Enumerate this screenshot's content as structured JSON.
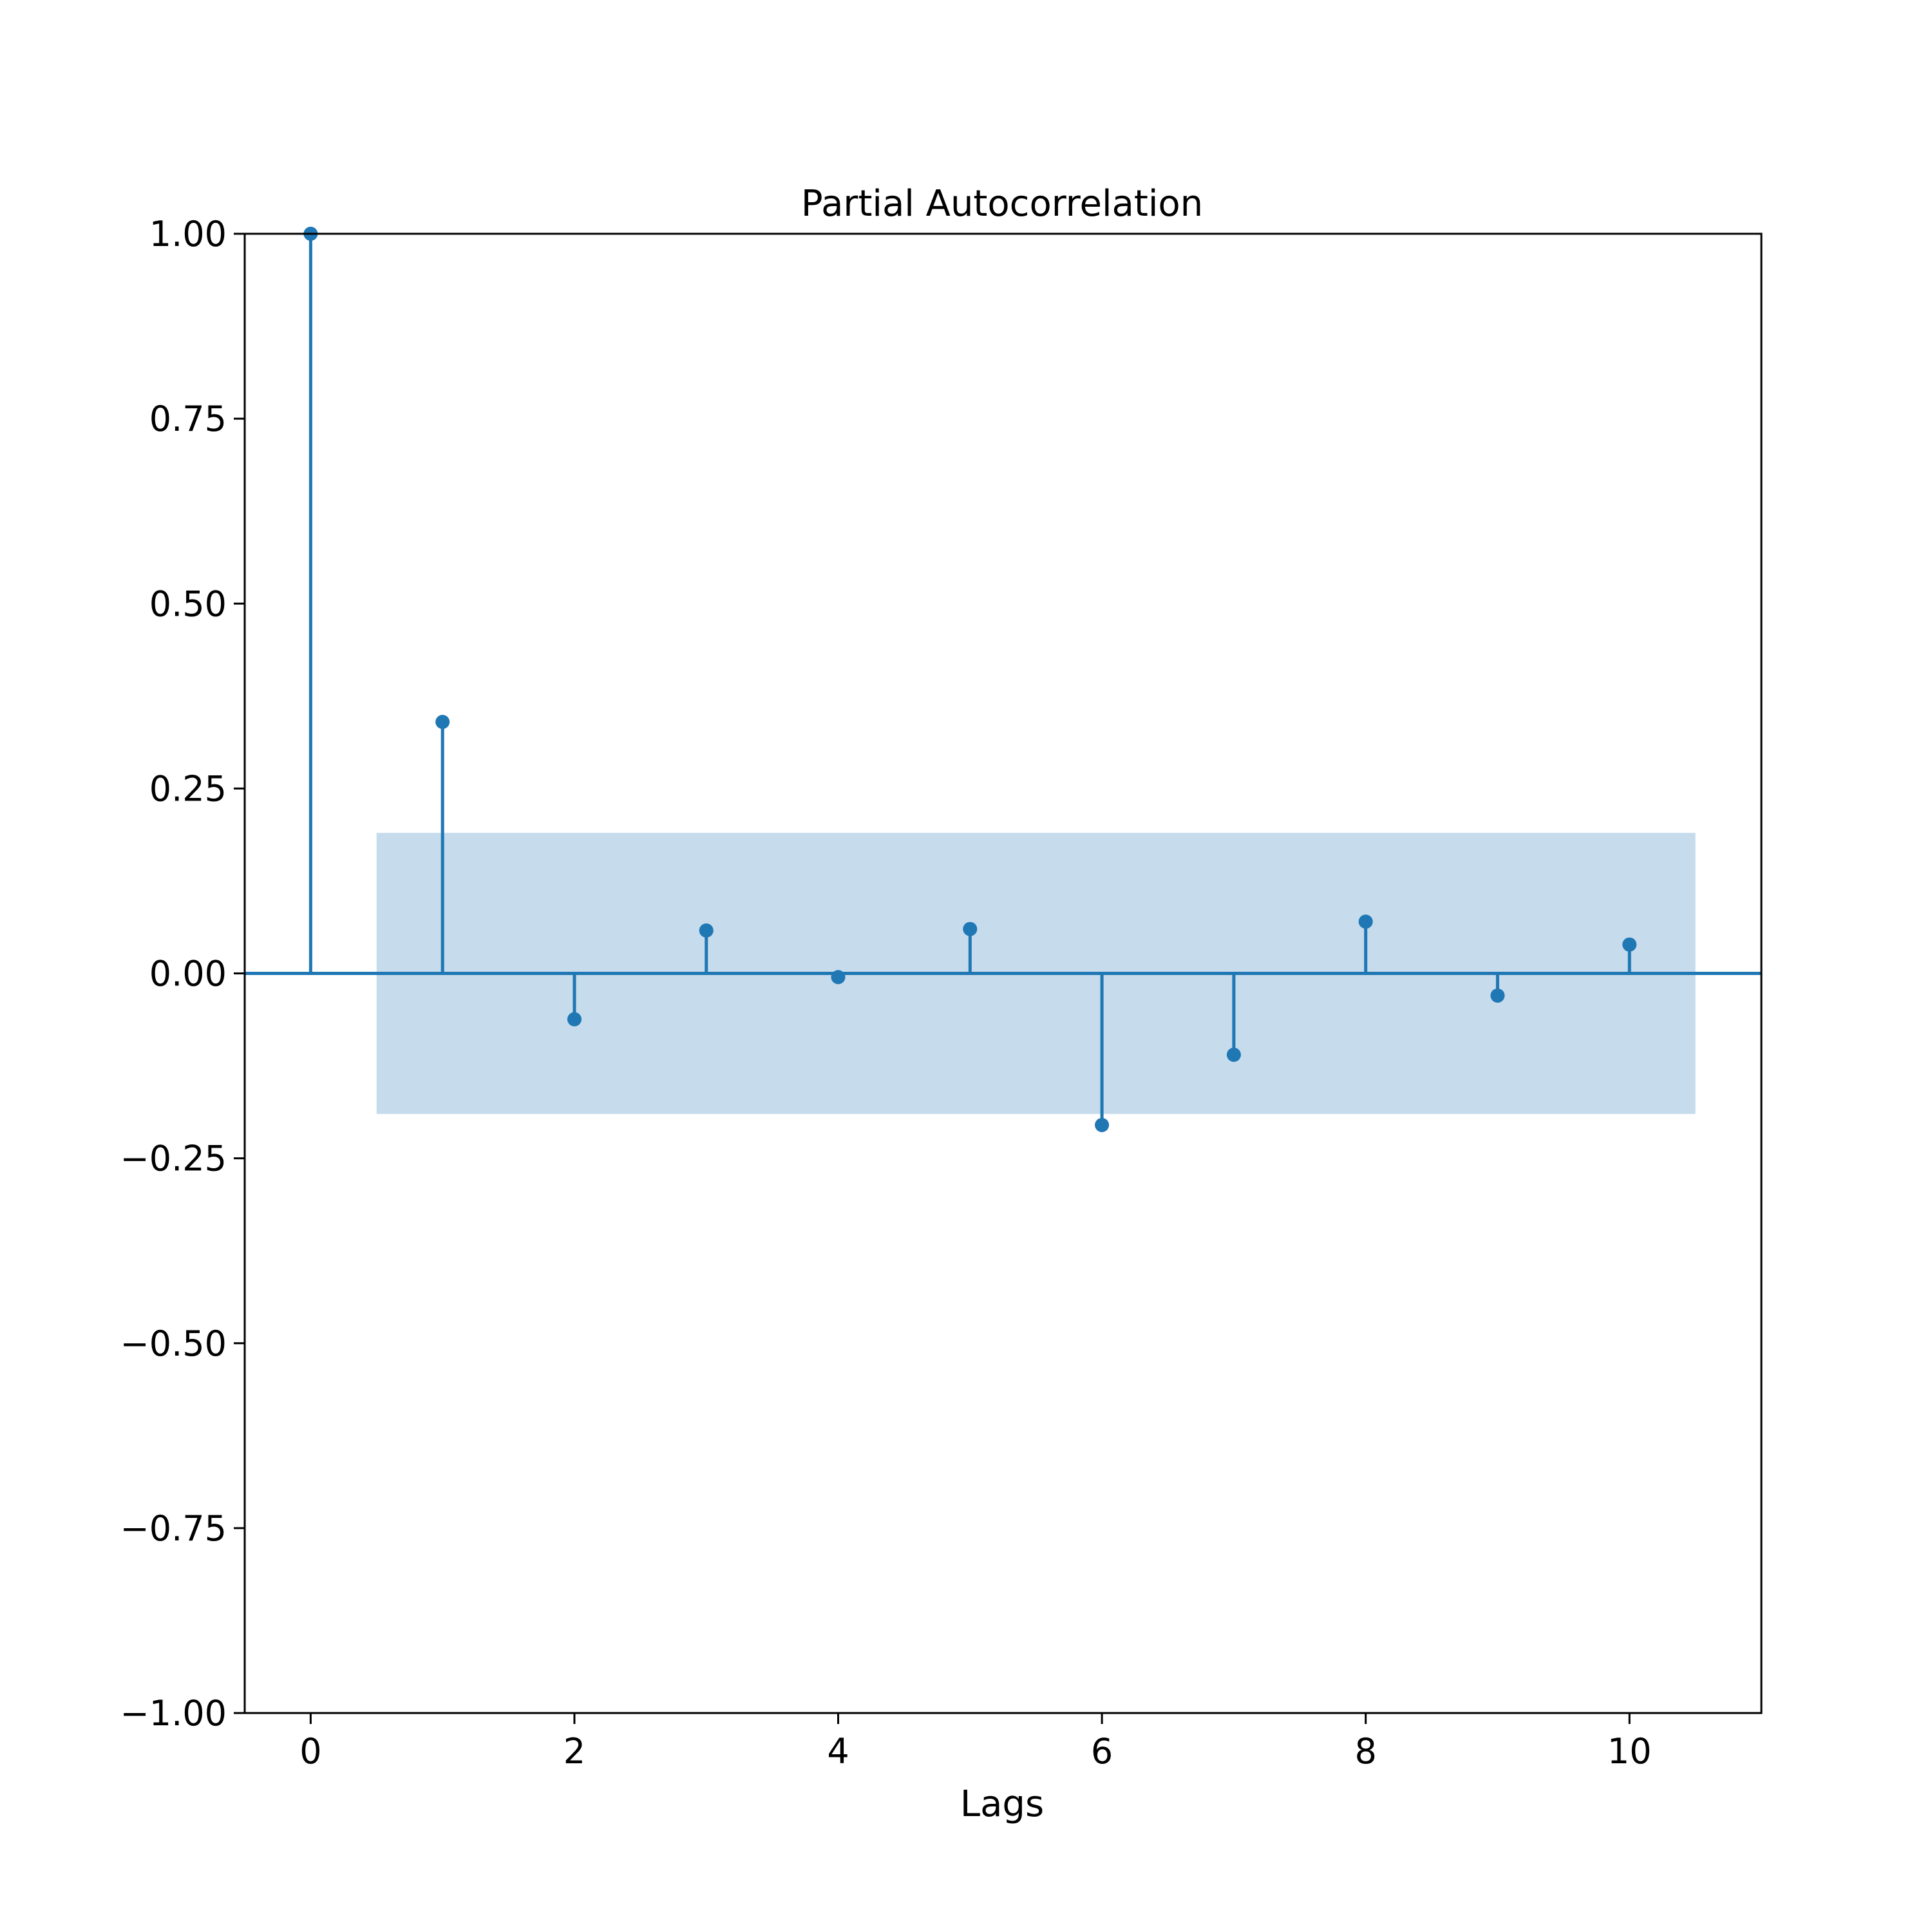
{
  "chart_data": {
    "type": "stem",
    "title": "Partial Autocorrelation",
    "xlabel": "Lags",
    "ylabel": "",
    "xlim": [
      -0.5,
      11
    ],
    "ylim": [
      -1,
      1
    ],
    "xticks": [
      0,
      2,
      4,
      6,
      8,
      10
    ],
    "xtick_labels": [
      "0",
      "2",
      "4",
      "6",
      "8",
      "10"
    ],
    "yticks": [
      1,
      0.75,
      0.5,
      0.25,
      0,
      -0.25,
      -0.5,
      -0.75,
      -1
    ],
    "ytick_labels": [
      "1.00",
      "0.75",
      "0.50",
      "0.25",
      "0.00",
      "−0.25",
      "−0.50",
      "−0.75",
      "−1.00"
    ],
    "grid": false,
    "x": [
      0,
      1,
      2,
      3,
      4,
      5,
      6,
      7,
      8,
      9,
      10
    ],
    "values": [
      1.0,
      0.34,
      -0.062,
      0.058,
      -0.005,
      0.06,
      -0.205,
      -0.11,
      0.07,
      -0.03,
      0.039
    ],
    "confidence_band": {
      "x_range": [
        0.5,
        10.5
      ],
      "upper": 0.19,
      "lower": -0.19
    },
    "colors": {
      "stem": "#1f77b4",
      "band": "#c6dbec",
      "axes": "#000000"
    }
  }
}
